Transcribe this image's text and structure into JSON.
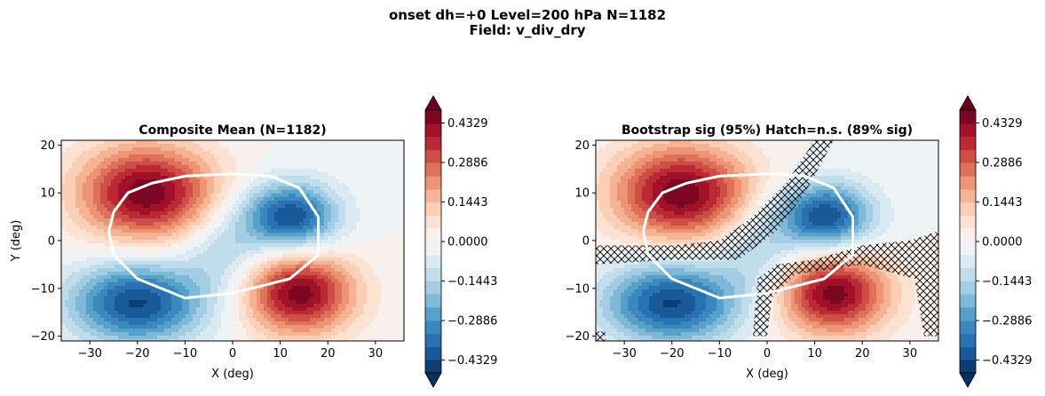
{
  "figure": {
    "suptitle_line1": "onset  dh=+0   Level=200 hPa   N=1182",
    "suptitle_line2": "Field: v_div_dry"
  },
  "chart_data": [
    {
      "type": "heatmap",
      "panel": "left",
      "title": "Composite Mean  (N=1182)",
      "xlabel": "X (deg)",
      "ylabel": "Y (deg)",
      "xlim": [
        -36,
        36
      ],
      "ylim": [
        -21,
        21
      ],
      "xticks": [
        "−30",
        "−20",
        "−10",
        "0",
        "10",
        "20",
        "30"
      ],
      "yticks": [
        "20",
        "10",
        "0",
        "−10",
        "−20"
      ],
      "hatching": false,
      "colorbar": {
        "ticks": [
          "0.4329",
          "0.2886",
          "0.1443",
          "0.0000",
          "−0.1443",
          "−0.2886",
          "−0.4329"
        ],
        "extend": "both",
        "colormap": "RdBu_r"
      }
    },
    {
      "type": "heatmap",
      "panel": "right",
      "title": "Bootstrap sig (95%)  Hatch=n.s.  (89% sig)",
      "xlabel": "X (deg)",
      "ylabel": "",
      "xlim": [
        -36,
        36
      ],
      "ylim": [
        -21,
        21
      ],
      "xticks": [
        "−30",
        "−20",
        "−10",
        "0",
        "10",
        "20",
        "30"
      ],
      "yticks": [
        "20",
        "10",
        "0",
        "−10",
        "−20"
      ],
      "hatching": true,
      "colorbar": {
        "ticks": [
          "0.4329",
          "0.2886",
          "0.1443",
          "0.0000",
          "−0.1443",
          "−0.2886",
          "−0.4329"
        ],
        "extend": "both",
        "colormap": "RdBu_r"
      }
    }
  ],
  "field": {
    "centers": [
      {
        "x": -18,
        "y": 10,
        "sx": 10,
        "sy": 7,
        "amp": 0.47
      },
      {
        "x": 12,
        "y": 5,
        "sx": 7,
        "sy": 5,
        "amp": -0.44
      },
      {
        "x": 14,
        "y": -11,
        "sx": 8,
        "sy": 6,
        "amp": 0.46
      },
      {
        "x": -20,
        "y": -13,
        "sx": 10,
        "sy": 6,
        "amp": -0.44
      },
      {
        "x": -2,
        "y": -2,
        "sx": 6,
        "sy": 6,
        "amp": -0.14
      }
    ],
    "levels_min": -0.48,
    "levels_max": 0.48,
    "level_count": 21
  },
  "white_contour": [
    [
      -25,
      6
    ],
    [
      -22,
      10
    ],
    [
      -17,
      12
    ],
    [
      -10,
      13.5
    ],
    [
      0,
      14
    ],
    [
      8,
      13.5
    ],
    [
      14,
      11
    ],
    [
      18,
      5
    ],
    [
      18,
      -3
    ],
    [
      12,
      -8
    ],
    [
      0,
      -11
    ],
    [
      -10,
      -12
    ],
    [
      -20,
      -8
    ],
    [
      -25,
      -3
    ],
    [
      -26,
      2
    ]
  ],
  "hatch_regions": [
    [
      [
        -36,
        -1
      ],
      [
        -20,
        -1
      ],
      [
        -10,
        0
      ],
      [
        -3,
        5
      ],
      [
        4,
        12
      ],
      [
        10,
        21
      ],
      [
        14,
        21
      ],
      [
        8,
        10
      ],
      [
        2,
        2
      ],
      [
        -6,
        -4
      ],
      [
        -20,
        -4
      ],
      [
        -36,
        -5
      ]
    ],
    [
      [
        -2,
        -8
      ],
      [
        2,
        -5
      ],
      [
        10,
        -4
      ],
      [
        20,
        -1
      ],
      [
        30,
        0
      ],
      [
        36,
        2
      ],
      [
        36,
        -20
      ],
      [
        33,
        -20
      ],
      [
        31,
        -8
      ],
      [
        20,
        -5
      ],
      [
        6,
        -7
      ],
      [
        1,
        -12
      ],
      [
        0,
        -20
      ],
      [
        -3,
        -20
      ]
    ],
    [
      [
        -36,
        -19
      ],
      [
        -34,
        -19
      ],
      [
        -34,
        -21
      ],
      [
        -36,
        -21
      ]
    ]
  ]
}
